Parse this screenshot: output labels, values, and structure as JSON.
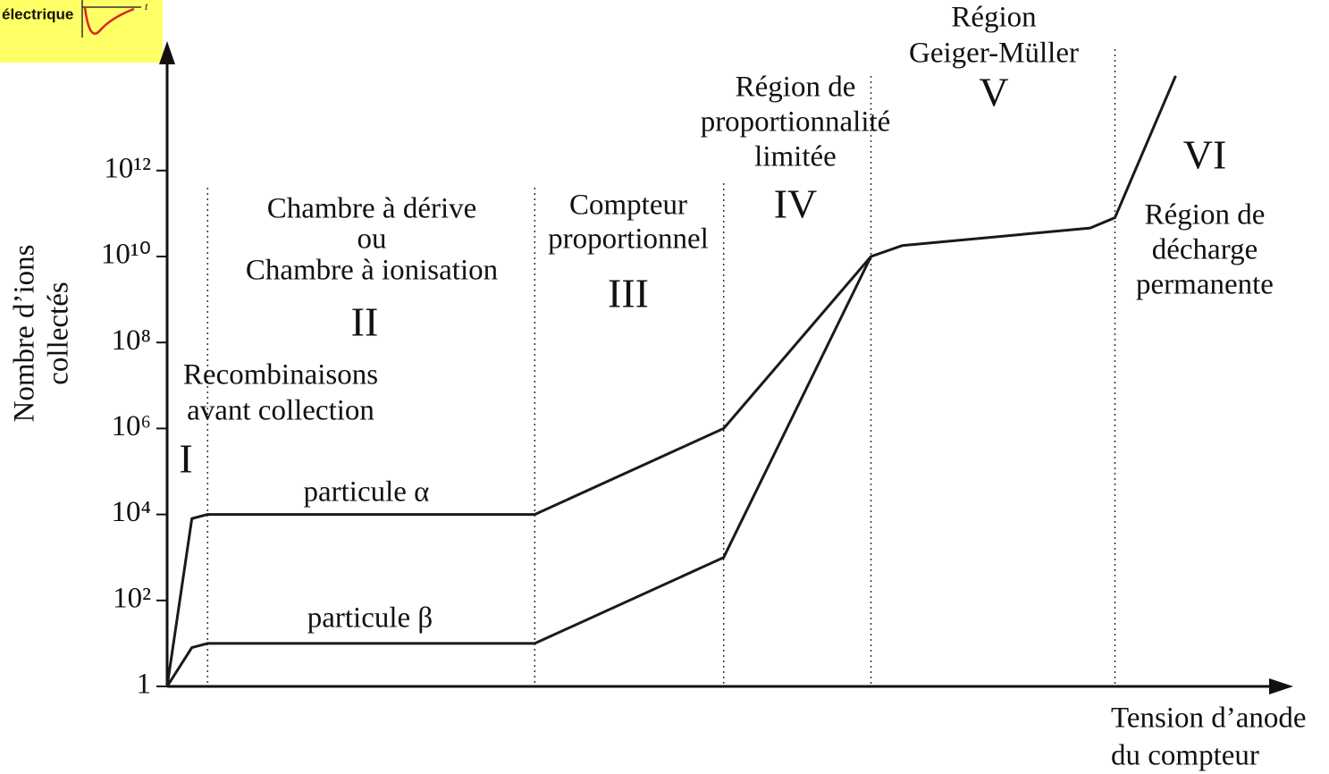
{
  "thumbnail": {
    "label": "électrique",
    "axis_label": "t"
  },
  "chart_data": {
    "type": "line",
    "yscale": "log",
    "ylabel": [
      "Nombre d’ions",
      "collectés"
    ],
    "xlabel": [
      "Tension d’anode",
      "du compteur"
    ],
    "xlim": [
      0,
      100
    ],
    "ylim": [
      1,
      1000000000000000.0
    ],
    "yticks": [
      1,
      {
        "value": 100,
        "label": "10²"
      },
      {
        "value": 10000,
        "label": "10⁴"
      },
      {
        "value": 1000000,
        "label": "10⁶"
      },
      {
        "value": 100000000,
        "label": "10⁸"
      },
      {
        "value": 10000000000,
        "label": "10¹⁰"
      },
      {
        "value": 1000000000000,
        "label": "10¹²"
      }
    ],
    "region_boundaries": [
      3.6,
      32.7,
      49.5,
      62.6,
      84.3
    ],
    "annotations": [
      "Région",
      "Geiger-Müller",
      "V",
      "Région de",
      "proportionnalité",
      "limitée",
      "IV",
      "Chambre à dérive",
      "ou",
      "Chambre à ionisation",
      "II",
      "Compteur",
      "proportionnel",
      "III",
      "VI",
      "Région de",
      "décharge",
      "permanente",
      "Recombinaisons",
      "avant collection",
      "I"
    ],
    "series": [
      {
        "name": "particule α",
        "color": "#1a1a1a",
        "x": [
          0,
          2.2,
          3.6,
          32.7,
          49.5,
          62.6,
          65.4,
          82.1,
          84.3,
          89.7
        ],
        "values": [
          1,
          8000,
          10000,
          10000,
          1000000,
          10000000000,
          18000000000,
          46000000000,
          80000000000,
          160000000000000
        ]
      },
      {
        "name": "particule β",
        "color": "#1a1a1a",
        "x": [
          0,
          2.2,
          3.6,
          32.7,
          49.5,
          62.6
        ],
        "values": [
          1,
          8,
          10,
          10,
          1000,
          10000000000
        ]
      }
    ]
  }
}
